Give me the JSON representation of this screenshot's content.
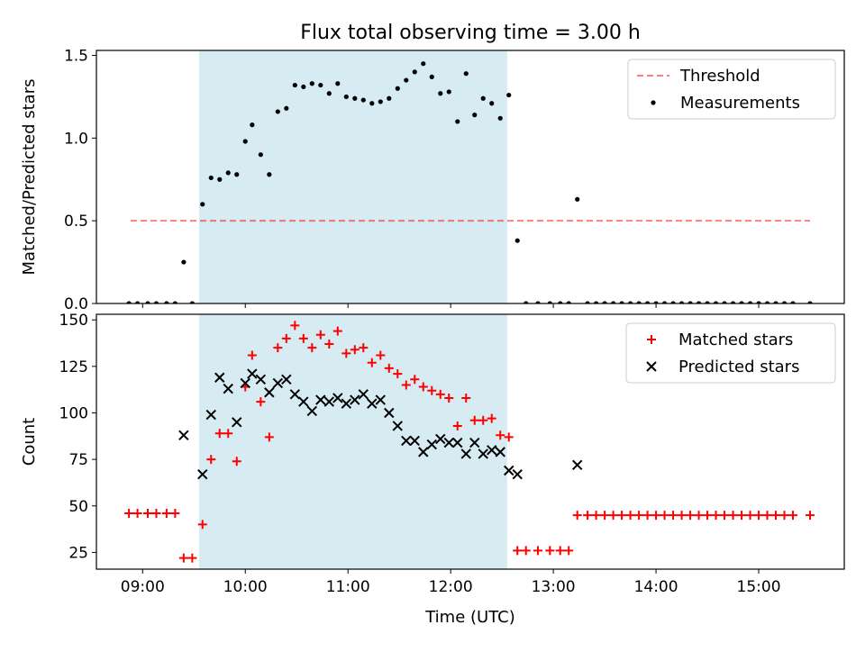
{
  "title": "Flux total observing time = 3.00 h",
  "colors": {
    "shade": "#add8e6",
    "threshold": "#ff0000",
    "measurements": "#000000",
    "matched": "#ff0000",
    "predicted": "#000000"
  },
  "chart_data": [
    {
      "type": "scatter",
      "ylabel": "Matched/Predicted stars",
      "xlabel": "",
      "xlim": [
        "08:33",
        "15:50"
      ],
      "ylim": [
        0,
        1.53
      ],
      "yticks": [
        "0.0",
        "0.5",
        "1.0",
        "1.5"
      ],
      "yticks_values": [
        0,
        0.5,
        1.0,
        1.5
      ],
      "shaded_interval": [
        "09:33",
        "12:33"
      ],
      "legend_position": "top-right",
      "legend": [
        "Threshold",
        "Measurements"
      ],
      "series": [
        {
          "name": "Threshold",
          "kind": "dashed-line",
          "x": [
            "08:53",
            "15:30"
          ],
          "y": [
            0.5,
            0.5
          ]
        },
        {
          "name": "Measurements",
          "kind": "dot",
          "x": [
            "08:52",
            "08:57",
            "09:03",
            "09:08",
            "09:14",
            "09:19",
            "09:24",
            "09:29",
            "09:35",
            "09:40",
            "09:45",
            "09:50",
            "09:55",
            "10:00",
            "10:04",
            "10:09",
            "10:14",
            "10:19",
            "10:24",
            "10:29",
            "10:34",
            "10:39",
            "10:44",
            "10:49",
            "10:54",
            "10:59",
            "11:04",
            "11:09",
            "11:14",
            "11:19",
            "11:24",
            "11:29",
            "11:34",
            "11:39",
            "11:44",
            "11:49",
            "11:54",
            "11:59",
            "12:04",
            "12:09",
            "12:14",
            "12:19",
            "12:24",
            "12:29",
            "12:34",
            "12:39",
            "12:44",
            "12:51",
            "12:58",
            "13:04",
            "13:09",
            "13:14",
            "13:20",
            "13:25",
            "13:30",
            "13:35",
            "13:40",
            "13:45",
            "13:50",
            "13:55",
            "14:00",
            "14:05",
            "14:10",
            "14:15",
            "14:20",
            "14:25",
            "14:30",
            "14:35",
            "14:40",
            "14:45",
            "14:50",
            "14:55",
            "15:00",
            "15:05",
            "15:10",
            "15:15",
            "15:20",
            "15:30"
          ],
          "y": [
            0,
            0,
            0,
            0,
            0,
            0,
            0.25,
            0,
            0.6,
            0.76,
            0.75,
            0.79,
            0.78,
            0.98,
            1.08,
            0.9,
            0.78,
            1.16,
            1.18,
            1.32,
            1.31,
            1.33,
            1.32,
            1.27,
            1.33,
            1.25,
            1.24,
            1.23,
            1.21,
            1.22,
            1.24,
            1.3,
            1.35,
            1.4,
            1.45,
            1.37,
            1.27,
            1.28,
            1.1,
            1.39,
            1.14,
            1.24,
            1.21,
            1.12,
            1.26,
            0.38,
            0,
            0,
            0,
            0,
            0,
            0.63,
            0,
            0,
            0,
            0,
            0,
            0,
            0,
            0,
            0,
            0,
            0,
            0,
            0,
            0,
            0,
            0,
            0,
            0,
            0,
            0,
            0,
            0,
            0,
            0,
            0,
            0
          ]
        }
      ]
    },
    {
      "type": "scatter",
      "ylabel": "Count",
      "xlabel": "Time (UTC)",
      "xlim": [
        "08:33",
        "15:50"
      ],
      "ylim": [
        16,
        153
      ],
      "yticks": [
        "25",
        "50",
        "75",
        "100",
        "125",
        "150"
      ],
      "yticks_values": [
        25,
        50,
        75,
        100,
        125,
        150
      ],
      "xticks": [
        "09:00",
        "10:00",
        "11:00",
        "12:00",
        "13:00",
        "14:00",
        "15:00"
      ],
      "shaded_interval": [
        "09:33",
        "12:33"
      ],
      "legend_position": "top-right",
      "legend": [
        "Matched stars",
        "Predicted stars"
      ],
      "series": [
        {
          "name": "Matched stars",
          "kind": "plus",
          "x": [
            "08:52",
            "08:57",
            "09:03",
            "09:08",
            "09:14",
            "09:19",
            "09:24",
            "09:29",
            "09:35",
            "09:40",
            "09:45",
            "09:50",
            "09:55",
            "10:00",
            "10:04",
            "10:09",
            "10:14",
            "10:19",
            "10:24",
            "10:29",
            "10:34",
            "10:39",
            "10:44",
            "10:49",
            "10:54",
            "10:59",
            "11:04",
            "11:09",
            "11:14",
            "11:19",
            "11:24",
            "11:29",
            "11:34",
            "11:39",
            "11:44",
            "11:49",
            "11:54",
            "11:59",
            "12:04",
            "12:09",
            "12:14",
            "12:19",
            "12:24",
            "12:29",
            "12:34",
            "12:39",
            "12:44",
            "12:51",
            "12:58",
            "13:04",
            "13:09",
            "13:14",
            "13:20",
            "13:25",
            "13:30",
            "13:35",
            "13:40",
            "13:45",
            "13:50",
            "13:55",
            "14:00",
            "14:05",
            "14:10",
            "14:15",
            "14:20",
            "14:25",
            "14:30",
            "14:35",
            "14:40",
            "14:45",
            "14:50",
            "14:55",
            "15:00",
            "15:05",
            "15:10",
            "15:15",
            "15:20",
            "15:30"
          ],
          "y": [
            46,
            46,
            46,
            46,
            46,
            46,
            22,
            22,
            40,
            75,
            89,
            89,
            74,
            114,
            131,
            106,
            87,
            135,
            140,
            147,
            140,
            135,
            142,
            137,
            144,
            132,
            134,
            135,
            127,
            131,
            124,
            121,
            115,
            118,
            114,
            112,
            110,
            108,
            93,
            108,
            96,
            96,
            97,
            88,
            87,
            26,
            26,
            26,
            26,
            26,
            26,
            45,
            45,
            45,
            45,
            45,
            45,
            45,
            45,
            45,
            45,
            45,
            45,
            45,
            45,
            45,
            45,
            45,
            45,
            45,
            45,
            45,
            45,
            45,
            45,
            45,
            45,
            45
          ]
        },
        {
          "name": "Predicted stars",
          "kind": "cross",
          "x": [
            "09:24",
            "09:35",
            "09:40",
            "09:45",
            "09:50",
            "09:55",
            "10:00",
            "10:04",
            "10:09",
            "10:14",
            "10:19",
            "10:24",
            "10:29",
            "10:34",
            "10:39",
            "10:44",
            "10:49",
            "10:54",
            "10:59",
            "11:04",
            "11:09",
            "11:14",
            "11:19",
            "11:24",
            "11:29",
            "11:34",
            "11:39",
            "11:44",
            "11:49",
            "11:54",
            "11:59",
            "12:04",
            "12:09",
            "12:14",
            "12:19",
            "12:24",
            "12:29",
            "12:34",
            "12:39",
            "13:14"
          ],
          "y": [
            88,
            67,
            99,
            119,
            113,
            95,
            116,
            121,
            118,
            111,
            116,
            118,
            110,
            106,
            101,
            107,
            106,
            108,
            105,
            107,
            110,
            105,
            107,
            100,
            93,
            85,
            85,
            79,
            83,
            86,
            84,
            84,
            78,
            84,
            78,
            80,
            79,
            69,
            67,
            72
          ]
        }
      ]
    }
  ]
}
